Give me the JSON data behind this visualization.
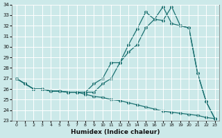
{
  "xlabel": "Humidex (Indice chaleur)",
  "background_color": "#cce9e9",
  "grid_color": "#b0d8d8",
  "line_color": "#1a7070",
  "hours": [
    0,
    1,
    2,
    3,
    4,
    5,
    6,
    7,
    8,
    9,
    10,
    11,
    12,
    13,
    14,
    15,
    16,
    17,
    18,
    19,
    20,
    21,
    22,
    23
  ],
  "line_zigzag": [
    27.0,
    26.5,
    26.0,
    26.0,
    25.8,
    25.8,
    25.7,
    25.7,
    25.7,
    26.5,
    27.0,
    28.5,
    28.5,
    30.2,
    31.7,
    33.3,
    32.6,
    32.5,
    33.8,
    32.0,
    31.8,
    27.5,
    24.8,
    23.2
  ],
  "line_up": [
    27.0,
    26.5,
    26.0,
    26.0,
    25.8,
    25.8,
    25.7,
    25.7,
    25.7,
    25.7,
    26.5,
    27.0,
    28.5,
    29.5,
    30.2,
    31.8,
    32.6,
    33.8,
    32.2,
    32.0,
    31.8,
    27.5,
    24.8,
    23.2
  ],
  "line_down": [
    27.0,
    26.5,
    26.0,
    26.0,
    25.8,
    25.8,
    25.7,
    25.7,
    25.5,
    25.3,
    25.2,
    25.0,
    24.9,
    24.7,
    24.5,
    24.3,
    24.1,
    23.9,
    23.8,
    23.7,
    23.6,
    23.5,
    23.3,
    23.2
  ],
  "ylim": [
    23,
    34
  ],
  "yticks": [
    23,
    24,
    25,
    26,
    27,
    28,
    29,
    30,
    31,
    32,
    33,
    34
  ],
  "xlim_min": -0.5,
  "xlim_max": 23.5,
  "figsize": [
    3.2,
    2.0
  ],
  "dpi": 100
}
